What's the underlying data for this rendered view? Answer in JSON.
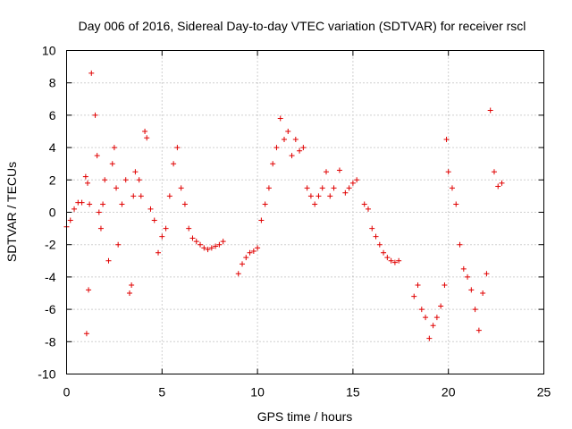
{
  "chart_data": {
    "type": "scatter",
    "title": "Day 006 of 2016, Sidereal Day-to-day VTEC variation (SDTVAR) for receiver rscl",
    "xlabel": "GPS time / hours",
    "ylabel": "SDTVAR / TECUs",
    "xlim": [
      0,
      25
    ],
    "ylim": [
      -10,
      10
    ],
    "xticks": [
      0,
      5,
      10,
      15,
      20,
      25
    ],
    "xtick_labels": [
      "0",
      "5",
      "10",
      "15",
      "20",
      "25"
    ],
    "yticks": [
      -10,
      -8,
      -6,
      -4,
      -2,
      0,
      2,
      4,
      6,
      8,
      10
    ],
    "ytick_labels": [
      "-10",
      "-8",
      "-6",
      "-4",
      "-2",
      "0",
      "2",
      "4",
      "6",
      "8",
      "10"
    ],
    "grid": true,
    "marker": "+",
    "color": "#e00000",
    "series": [
      {
        "name": "SDTVAR",
        "x": [
          0.0,
          0.2,
          0.4,
          0.6,
          0.8,
          1.0,
          1.1,
          1.2,
          1.05,
          1.15,
          1.3,
          1.5,
          1.6,
          1.7,
          1.8,
          1.9,
          2.0,
          2.2,
          2.4,
          2.5,
          2.6,
          2.7,
          2.9,
          3.1,
          3.3,
          3.4,
          3.5,
          3.6,
          3.8,
          3.9,
          4.1,
          4.2,
          4.4,
          4.6,
          4.8,
          5.0,
          5.2,
          5.4,
          5.6,
          5.8,
          6.0,
          6.2,
          6.4,
          6.6,
          6.8,
          7.0,
          7.2,
          7.4,
          7.6,
          7.8,
          8.0,
          8.2,
          9.0,
          9.2,
          9.4,
          9.6,
          9.8,
          10.0,
          10.2,
          10.4,
          10.6,
          10.8,
          11.0,
          11.2,
          11.4,
          11.6,
          11.8,
          12.0,
          12.2,
          12.4,
          12.6,
          12.8,
          13.0,
          13.2,
          13.4,
          13.6,
          13.8,
          14.0,
          14.3,
          14.6,
          14.8,
          15.0,
          15.2,
          15.6,
          15.8,
          16.0,
          16.2,
          16.4,
          16.6,
          16.8,
          17.0,
          17.2,
          17.4,
          18.2,
          18.4,
          18.6,
          18.8,
          19.0,
          19.2,
          19.4,
          19.6,
          19.8,
          19.9,
          20.0,
          20.2,
          20.4,
          20.6,
          20.8,
          21.0,
          21.2,
          21.4,
          21.6,
          21.8,
          22.0,
          22.2,
          22.4,
          22.6,
          22.8
        ],
        "y": [
          -0.9,
          -0.5,
          0.2,
          0.6,
          0.6,
          2.2,
          1.8,
          0.5,
          -7.5,
          -4.8,
          8.6,
          6.0,
          3.5,
          0.0,
          -1.0,
          0.5,
          2.0,
          -3.0,
          3.0,
          4.0,
          1.5,
          -2.0,
          0.5,
          2.0,
          -5.0,
          -4.5,
          1.0,
          2.5,
          2.0,
          1.0,
          5.0,
          4.6,
          0.2,
          -0.5,
          -2.5,
          -1.5,
          -1.0,
          1.0,
          3.0,
          4.0,
          1.5,
          0.5,
          -1.0,
          -1.6,
          -1.8,
          -2.0,
          -2.2,
          -2.3,
          -2.2,
          -2.1,
          -2.0,
          -1.8,
          -3.8,
          -3.2,
          -2.8,
          -2.5,
          -2.4,
          -2.2,
          -0.5,
          0.5,
          1.5,
          3.0,
          4.0,
          5.8,
          4.5,
          5.0,
          3.5,
          4.5,
          3.8,
          4.0,
          1.5,
          1.0,
          0.5,
          1.0,
          1.5,
          2.5,
          1.0,
          1.5,
          2.6,
          1.2,
          1.5,
          1.8,
          2.0,
          0.5,
          0.2,
          -1.0,
          -1.5,
          -2.0,
          -2.5,
          -2.8,
          -3.0,
          -3.1,
          -3.0,
          -5.2,
          -4.5,
          -6.0,
          -6.5,
          -7.8,
          -7.0,
          -6.5,
          -5.8,
          -4.5,
          4.5,
          2.5,
          1.5,
          0.5,
          -2.0,
          -3.5,
          -4.0,
          -4.8,
          -6.0,
          -7.3,
          -5.0,
          -3.8,
          6.3,
          2.5,
          1.6,
          1.8
        ]
      }
    ]
  }
}
